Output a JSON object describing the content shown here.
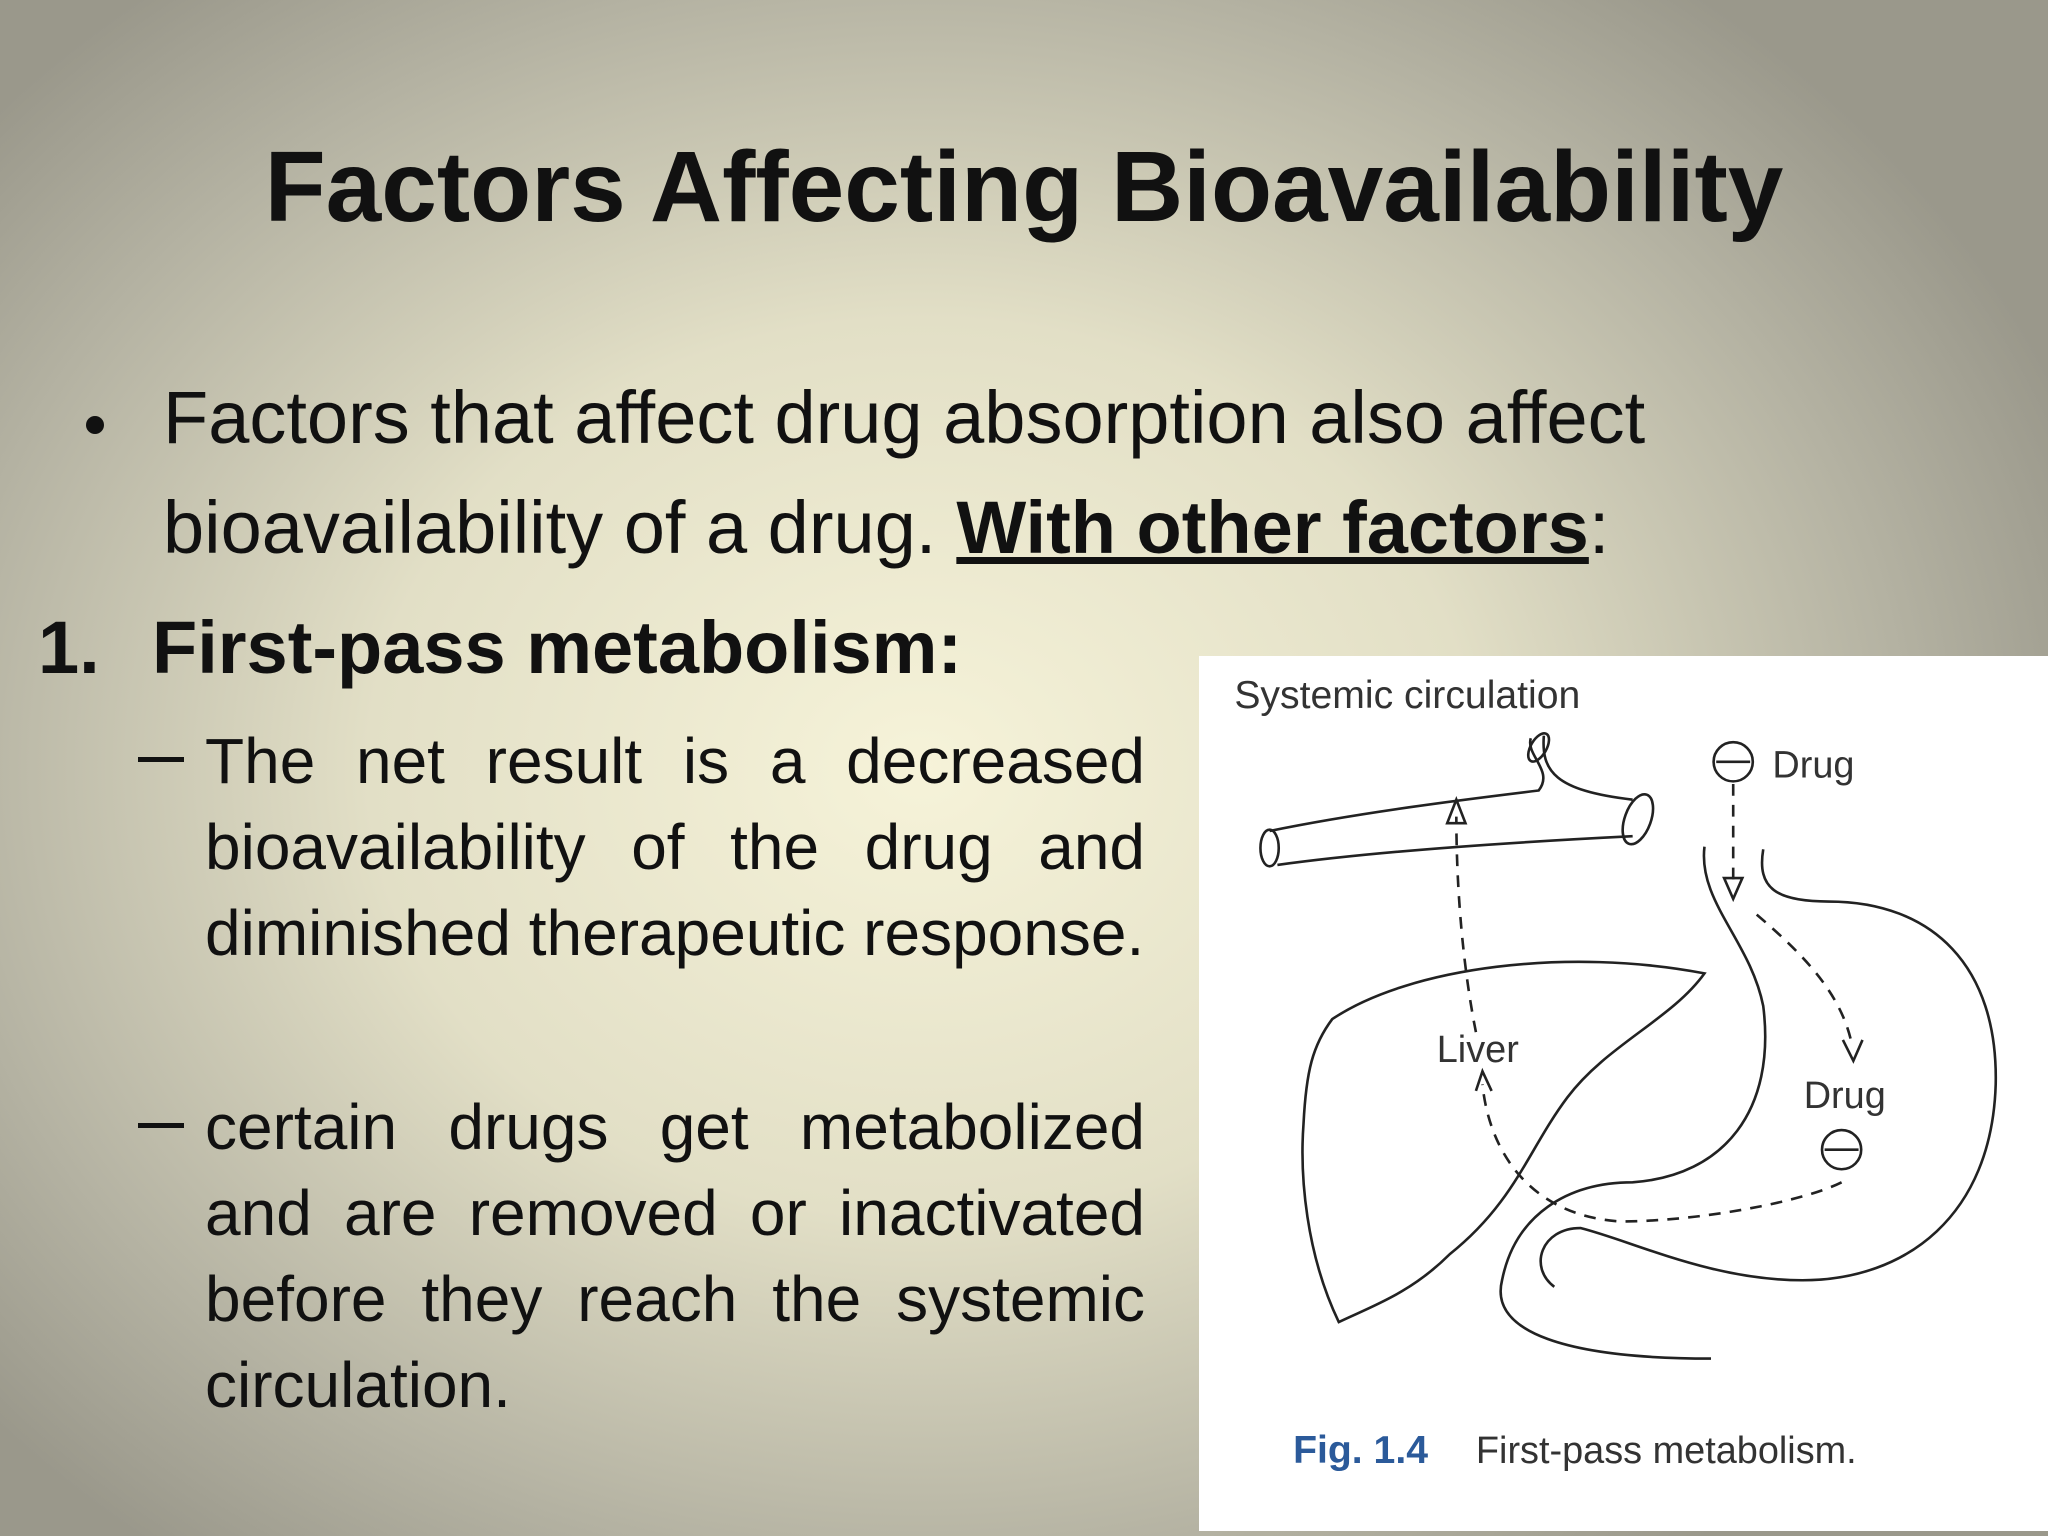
{
  "title": "Factors Affecting Bioavailability",
  "bullet": {
    "line1": "Factors that affect drug absorption also affect",
    "line2": "bioavailability of a drug.",
    "emphasis": "With other factors",
    "end": ":"
  },
  "item": {
    "marker": "1.",
    "heading": "First-pass metabolism:"
  },
  "subpoints": [
    "The net result is a decreased bioavailability of the drug and diminished therapeutic response.",
    "certain drugs get metabolized and are removed or inactivated before they reach the systemic circulation."
  ],
  "figure": {
    "systemic": "Systemic circulation",
    "drug_top": "Drug",
    "liver": "Liver",
    "drug_stomach": "Drug",
    "fig_number": "Fig. 1.4",
    "caption": "First-pass metabolism."
  }
}
